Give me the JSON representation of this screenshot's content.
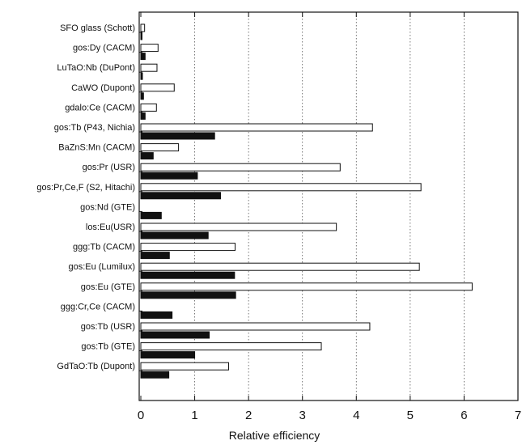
{
  "chart_data": {
    "type": "bar",
    "orientation": "horizontal",
    "xlabel": "Relative efficiency",
    "ylabel": "",
    "title": "",
    "xlim": [
      0,
      7
    ],
    "xticks": [
      "0",
      "1",
      "2",
      "3",
      "4",
      "5",
      "6",
      "7"
    ],
    "grid": "vertical dotted",
    "categories": [
      "SFO glass (Schott)",
      "gos:Dy (CACM)",
      "LuTaO:Nb (DuPont)",
      "CaWO (Dupont)",
      "gdalo:Ce (CACM)",
      "gos:Tb (P43, Nichia)",
      "BaZnS:Mn (CACM)",
      "gos:Pr (USR)",
      "gos:Pr,Ce,F (S2, Hitachi)",
      "gos:Nd (GTE)",
      "los:Eu(USR)",
      "ggg:Tb (CACM)",
      "gos:Eu (Lumilux)",
      "gos:Eu (GTE)",
      "ggg:Cr,Ce (CACM)",
      "gos:Tb (USR)",
      "gos:Tb (GTE)",
      "GdTaO:Tb (Dupont)"
    ],
    "series": [
      {
        "style": "open",
        "values": [
          0.07,
          0.32,
          0.3,
          0.62,
          0.29,
          4.3,
          0.7,
          3.7,
          5.2,
          0,
          3.63,
          1.75,
          5.17,
          6.15,
          0,
          4.25,
          3.35,
          1.63
        ]
      },
      {
        "style": "filled",
        "values": [
          0.02,
          0.08,
          0.03,
          0.05,
          0.08,
          1.37,
          0.23,
          1.05,
          1.48,
          0.38,
          1.25,
          0.53,
          1.74,
          1.76,
          0.58,
          1.27,
          1.0,
          0.52
        ]
      }
    ]
  }
}
